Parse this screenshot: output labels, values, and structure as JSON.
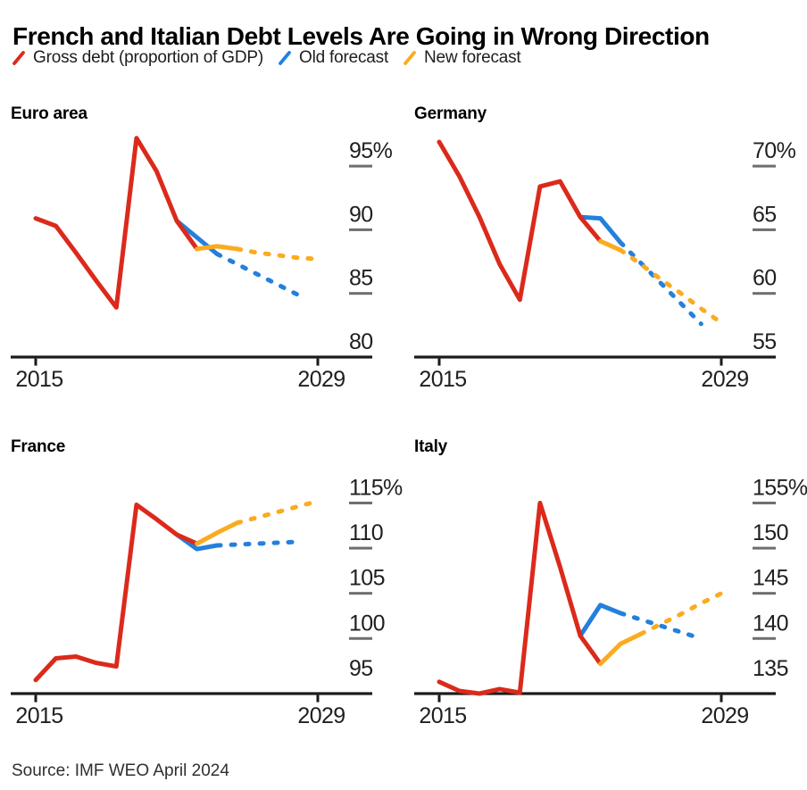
{
  "title": "French and Italian Debt Levels Are Going in Wrong Direction",
  "source": "Source: IMF WEO April 2024",
  "colors": {
    "red": "#db2a1b",
    "blue": "#2380dd",
    "yellow": "#fbab1f",
    "axis": "#1a1a1a",
    "tick_dash": "#6e6e6e",
    "label": "#1f1f1f"
  },
  "legend": [
    {
      "label": "Gross debt (proportion of GDP)",
      "color_key": "red"
    },
    {
      "label": "Old forecast",
      "color_key": "blue"
    },
    {
      "label": "New forecast",
      "color_key": "yellow"
    }
  ],
  "x_axis": {
    "min": 2015,
    "max": 2029,
    "start_label": "2015",
    "end_label": "2029"
  },
  "chart_data": [
    {
      "type": "line",
      "title": "Euro area",
      "unit": "%",
      "ylim": [
        80,
        98
      ],
      "y_axis_bottom_value": 80,
      "yticks": [
        {
          "value": 95,
          "label": "95%"
        },
        {
          "value": 90,
          "label": "90"
        },
        {
          "value": 85,
          "label": "85"
        },
        {
          "value": 80,
          "label": "80"
        }
      ],
      "series": [
        {
          "name": "Gross debt (proportion of GDP)",
          "color_key": "red",
          "style": "solid",
          "x": [
            2015,
            2016,
            2017,
            2018,
            2019,
            2020,
            2021,
            2022,
            2023
          ],
          "values": [
            90.9,
            90.3,
            88.2,
            86.0,
            83.9,
            97.2,
            94.6,
            90.7,
            88.5
          ]
        },
        {
          "name": "Old forecast",
          "color_key": "blue",
          "solid_until": 2024,
          "x": [
            2022,
            2023,
            2024,
            2025,
            2026,
            2027,
            2028
          ],
          "values": [
            90.7,
            89.4,
            88.1,
            87.3,
            86.5,
            85.7,
            84.9
          ]
        },
        {
          "name": "New forecast",
          "color_key": "yellow",
          "solid_until": 2025,
          "x": [
            2023,
            2024,
            2025,
            2026,
            2027,
            2028,
            2029
          ],
          "values": [
            88.5,
            88.7,
            88.5,
            88.2,
            88.0,
            87.8,
            87.7
          ]
        }
      ]
    },
    {
      "type": "line",
      "title": "Germany",
      "unit": "%",
      "ylim": [
        55,
        72
      ],
      "y_axis_bottom_value": 55,
      "yticks": [
        {
          "value": 70,
          "label": "70%"
        },
        {
          "value": 65,
          "label": "65"
        },
        {
          "value": 60,
          "label": "60"
        },
        {
          "value": 55,
          "label": "55"
        }
      ],
      "series": [
        {
          "name": "Gross debt (proportion of GDP)",
          "color_key": "red",
          "style": "solid",
          "x": [
            2015,
            2016,
            2017,
            2018,
            2019,
            2020,
            2021,
            2022,
            2023
          ],
          "values": [
            71.9,
            69.2,
            66.0,
            62.3,
            59.5,
            68.4,
            68.8,
            66.0,
            64.1
          ]
        },
        {
          "name": "Old forecast",
          "color_key": "blue",
          "solid_until": 2024,
          "x": [
            2022,
            2023,
            2024,
            2025,
            2026,
            2027,
            2028
          ],
          "values": [
            66.0,
            65.9,
            64.0,
            62.4,
            60.8,
            59.2,
            57.6
          ]
        },
        {
          "name": "New forecast",
          "color_key": "yellow",
          "solid_until": 2024,
          "x": [
            2023,
            2024,
            2025,
            2026,
            2027,
            2028,
            2029
          ],
          "values": [
            64.1,
            63.4,
            62.3,
            61.1,
            60.0,
            58.8,
            57.7
          ]
        }
      ]
    },
    {
      "type": "line",
      "title": "France",
      "unit": "%",
      "ylim": [
        93.9,
        116
      ],
      "y_axis_bottom_value": 93.9,
      "yticks": [
        {
          "value": 115,
          "label": "115%"
        },
        {
          "value": 110,
          "label": "110"
        },
        {
          "value": 105,
          "label": "105"
        },
        {
          "value": 100,
          "label": "100"
        },
        {
          "value": 95,
          "label": "95"
        }
      ],
      "series": [
        {
          "name": "Gross debt (proportion of GDP)",
          "color_key": "red",
          "style": "solid",
          "x": [
            2015,
            2016,
            2017,
            2018,
            2019,
            2020,
            2021,
            2022,
            2023
          ],
          "values": [
            95.4,
            97.8,
            98.0,
            97.3,
            96.9,
            114.8,
            113.2,
            111.5,
            110.5
          ]
        },
        {
          "name": "Old forecast",
          "color_key": "blue",
          "solid_until": 2024,
          "x": [
            2022,
            2023,
            2024,
            2025,
            2026,
            2027,
            2028
          ],
          "values": [
            111.5,
            109.9,
            110.3,
            110.4,
            110.5,
            110.6,
            110.7
          ]
        },
        {
          "name": "New forecast",
          "color_key": "yellow",
          "solid_until": 2025,
          "x": [
            2023,
            2024,
            2025,
            2026,
            2027,
            2028,
            2029
          ],
          "values": [
            110.5,
            111.7,
            112.8,
            113.4,
            114.0,
            114.6,
            115.2
          ]
        }
      ]
    },
    {
      "type": "line",
      "title": "Italy",
      "unit": "%",
      "ylim": [
        133.9,
        156
      ],
      "y_axis_bottom_value": 133.9,
      "yticks": [
        {
          "value": 155,
          "label": "155%"
        },
        {
          "value": 150,
          "label": "150"
        },
        {
          "value": 145,
          "label": "145"
        },
        {
          "value": 140,
          "label": "140"
        },
        {
          "value": 135,
          "label": "135"
        }
      ],
      "series": [
        {
          "name": "Gross debt (proportion of GDP)",
          "color_key": "red",
          "style": "solid",
          "x": [
            2015,
            2016,
            2017,
            2018,
            2019,
            2020,
            2021,
            2022,
            2023
          ],
          "values": [
            135.2,
            134.2,
            133.9,
            134.4,
            134.0,
            155.0,
            147.9,
            140.3,
            137.2
          ]
        },
        {
          "name": "Old forecast",
          "color_key": "blue",
          "solid_until": 2024,
          "x": [
            2022,
            2023,
            2024,
            2025,
            2026,
            2027,
            2028
          ],
          "values": [
            140.3,
            143.7,
            142.8,
            142.1,
            141.4,
            140.7,
            140.0
          ]
        },
        {
          "name": "New forecast",
          "color_key": "yellow",
          "solid_until": 2025,
          "x": [
            2023,
            2024,
            2025,
            2026,
            2027,
            2028,
            2029
          ],
          "values": [
            137.2,
            139.4,
            140.5,
            141.6,
            142.7,
            143.9,
            145.0
          ]
        }
      ]
    }
  ]
}
